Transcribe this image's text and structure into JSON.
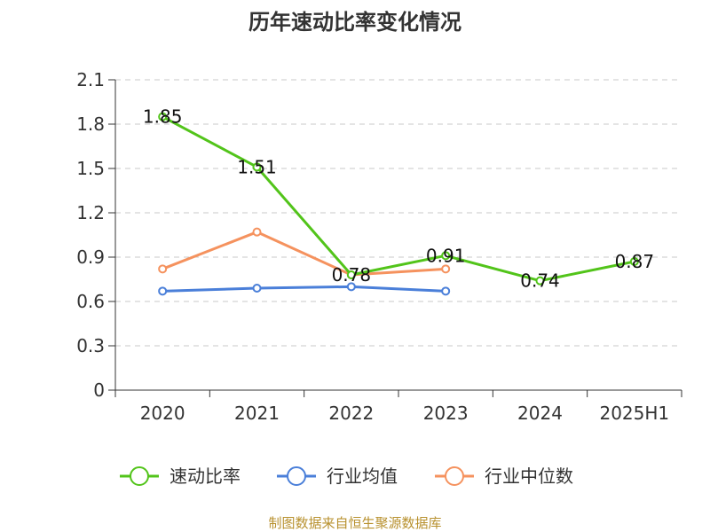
{
  "chart_data": {
    "type": "line",
    "title": "历年速动比率变化情况",
    "categories": [
      "2020",
      "2021",
      "2022",
      "2023",
      "2024",
      "2025H1"
    ],
    "ylim": [
      0,
      2.1
    ],
    "yticks": [
      "0",
      "0.3",
      "0.6",
      "0.9",
      "1.2",
      "1.5",
      "1.8",
      "2.1"
    ],
    "grid": true,
    "legend_position": "bottom",
    "series": [
      {
        "name": "速动比率",
        "color": "#52c41a",
        "values": [
          1.85,
          1.51,
          0.78,
          0.91,
          0.74,
          0.87
        ],
        "labels": [
          "1.85",
          "1.51",
          "0.78",
          "0.91",
          "0.74",
          "0.87"
        ]
      },
      {
        "name": "行业均值",
        "color": "#4a7fd9",
        "values": [
          0.67,
          0.69,
          0.7,
          0.67,
          null,
          null
        ]
      },
      {
        "name": "行业中位数",
        "color": "#f5925e",
        "values": [
          0.82,
          1.07,
          0.78,
          0.82,
          null,
          null
        ]
      }
    ]
  },
  "source": "制图数据来自恒生聚源数据库"
}
